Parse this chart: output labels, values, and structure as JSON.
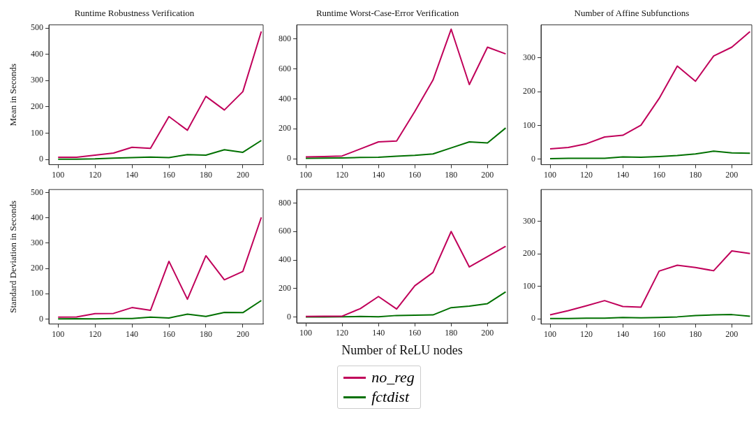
{
  "chart_data": [
    {
      "type": "line",
      "title": "Runtime Robustness Verification",
      "ylabel": "Mean in Seconds",
      "x": [
        100,
        110,
        120,
        130,
        140,
        150,
        160,
        170,
        180,
        190,
        200,
        210
      ],
      "xlim": [
        95,
        211
      ],
      "xticks": [
        100,
        120,
        140,
        160,
        180,
        200
      ],
      "ylim": [
        -20,
        512
      ],
      "yticks": [
        0,
        100,
        200,
        300,
        400,
        500
      ],
      "grid": false,
      "legend": "bottom",
      "series": [
        {
          "name": "no_reg",
          "color": "#c0005a",
          "values": [
            8,
            8,
            16,
            24,
            46,
            42,
            163,
            111,
            240,
            188,
            258,
            487
          ]
        },
        {
          "name": "fctdist",
          "color": "#007000",
          "values": [
            1,
            1,
            2,
            5,
            7,
            9,
            7,
            18,
            16,
            37,
            27,
            72
          ]
        }
      ]
    },
    {
      "type": "line",
      "title": "Runtime Worst-Case-Error Verification",
      "x": [
        100,
        110,
        120,
        130,
        140,
        150,
        160,
        170,
        180,
        190,
        200,
        210
      ],
      "xlim": [
        95,
        211
      ],
      "xticks": [
        100,
        120,
        140,
        160,
        180,
        200
      ],
      "ylim": [
        -40,
        894
      ],
      "yticks": [
        0,
        200,
        400,
        600,
        800
      ],
      "grid": false,
      "series": [
        {
          "color": "#c0005a",
          "values": [
            12,
            14,
            18,
            65,
            112,
            118,
            315,
            525,
            865,
            495,
            745,
            700
          ]
        },
        {
          "color": "#007000",
          "values": [
            3,
            4,
            5,
            8,
            10,
            16,
            22,
            32,
            72,
            112,
            105,
            205
          ]
        }
      ]
    },
    {
      "type": "line",
      "title": "Number of Affine Subfunctions",
      "x": [
        100,
        110,
        120,
        130,
        140,
        150,
        160,
        170,
        180,
        190,
        200,
        210
      ],
      "xlim": [
        95,
        211
      ],
      "xticks": [
        100,
        120,
        140,
        160,
        180,
        200
      ],
      "ylim": [
        -16,
        398
      ],
      "yticks": [
        0,
        100,
        200,
        300
      ],
      "grid": false,
      "series": [
        {
          "color": "#c0005a",
          "values": [
            31,
            35,
            46,
            66,
            71,
            101,
            180,
            276,
            231,
            306,
            332,
            378
          ]
        },
        {
          "color": "#007000",
          "values": [
            2,
            3,
            3,
            3,
            7,
            6,
            8,
            11,
            16,
            24,
            19,
            18
          ]
        }
      ]
    },
    {
      "type": "line",
      "ylabel": "Standard Deviation in Seconds",
      "x": [
        100,
        110,
        120,
        130,
        140,
        150,
        160,
        170,
        180,
        190,
        200,
        210
      ],
      "xlim": [
        95,
        211
      ],
      "xticks": [
        100,
        120,
        140,
        160,
        180,
        200
      ],
      "ylim": [
        -20,
        512
      ],
      "yticks": [
        0,
        100,
        200,
        300,
        400,
        500
      ],
      "grid": false,
      "series": [
        {
          "color": "#c0005a",
          "values": [
            7,
            8,
            21,
            22,
            45,
            34,
            228,
            78,
            250,
            155,
            188,
            402
          ]
        },
        {
          "color": "#007000",
          "values": [
            0,
            1,
            0,
            2,
            2,
            7,
            4,
            19,
            10,
            26,
            25,
            73
          ]
        }
      ]
    },
    {
      "type": "line",
      "xlabel": "Number of ReLU nodes",
      "x": [
        100,
        110,
        120,
        130,
        140,
        150,
        160,
        170,
        180,
        190,
        200,
        210
      ],
      "xlim": [
        95,
        211
      ],
      "xticks": [
        100,
        120,
        140,
        160,
        180,
        200
      ],
      "ylim": [
        -40,
        894
      ],
      "yticks": [
        0,
        200,
        400,
        600,
        800
      ],
      "grid": false,
      "series": [
        {
          "color": "#c0005a",
          "values": [
            5,
            6,
            7,
            60,
            145,
            57,
            220,
            313,
            600,
            352,
            425,
            497
          ]
        },
        {
          "color": "#007000",
          "values": [
            2,
            2,
            3,
            5,
            3,
            12,
            14,
            16,
            67,
            78,
            95,
            177
          ]
        }
      ]
    },
    {
      "type": "line",
      "x": [
        100,
        110,
        120,
        130,
        140,
        150,
        160,
        170,
        180,
        190,
        200,
        210
      ],
      "xlim": [
        95,
        211
      ],
      "xticks": [
        100,
        120,
        140,
        160,
        180,
        200
      ],
      "ylim": [
        -16,
        398
      ],
      "yticks": [
        0,
        100,
        200,
        300
      ],
      "grid": false,
      "series": [
        {
          "color": "#c0005a",
          "values": [
            12,
            25,
            40,
            56,
            38,
            36,
            147,
            165,
            158,
            148,
            209,
            201
          ]
        },
        {
          "color": "#007000",
          "values": [
            1,
            1,
            2,
            2,
            4,
            3,
            4,
            6,
            10,
            12,
            13,
            8
          ]
        }
      ]
    }
  ]
}
